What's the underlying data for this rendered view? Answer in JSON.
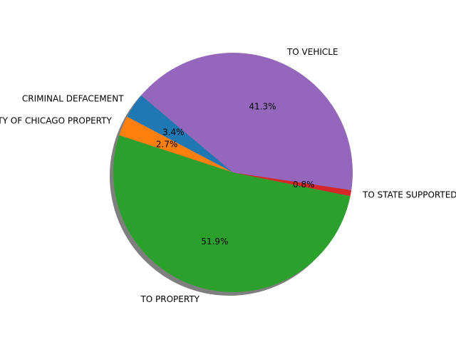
{
  "chart_data": {
    "type": "pie",
    "title": "",
    "shadow": true,
    "start_angle_deg": 140,
    "counterclock": true,
    "slices": [
      {
        "label": "CRIMINAL DEFACEMENT",
        "percent": 3.4,
        "pct_text": "3.4%",
        "color": "#1f77b4"
      },
      {
        "label": "TO CITY OF CHICAGO PROPERTY",
        "percent": 2.7,
        "pct_text": "2.7%",
        "color": "#ff7f0e"
      },
      {
        "label": "TO PROPERTY",
        "percent": 51.9,
        "pct_text": "51.9%",
        "color": "#2ca02c"
      },
      {
        "label": "TO STATE SUPPORTED PROPERTY",
        "percent": 0.8,
        "pct_text": "0.8%",
        "color": "#d62728"
      },
      {
        "label": "TO VEHICLE",
        "percent": 41.3,
        "pct_text": "41.3%",
        "color": "#9467bd"
      }
    ]
  }
}
